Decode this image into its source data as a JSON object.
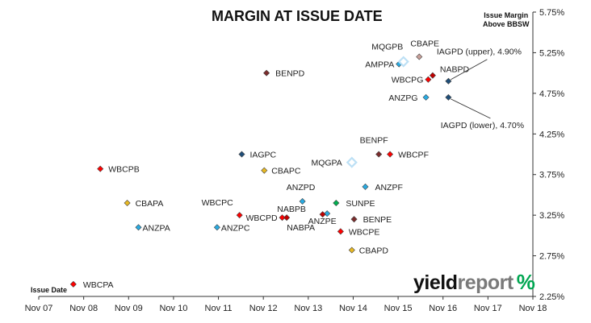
{
  "chart_data": {
    "type": "scatter",
    "title": "MARGIN AT ISSUE DATE",
    "ylabel": [
      "Issue Margin",
      "Above BBSW"
    ],
    "xlabel": "Issue Date",
    "x_ticks": [
      "Nov 07",
      "Nov 08",
      "Nov 09",
      "Nov 10",
      "Nov 11",
      "Nov 12",
      "Nov 13",
      "Nov 14",
      "Nov 15",
      "Nov 16",
      "Nov 17",
      "Nov 18"
    ],
    "y_ticks": [
      "2.25%",
      "2.75%",
      "3.25%",
      "3.75%",
      "4.25%",
      "4.75%",
      "5.25%",
      "5.75%"
    ],
    "xlim": [
      2007.83,
      2018.83
    ],
    "ylim": [
      2.25,
      5.75
    ],
    "grid": false,
    "points": [
      {
        "label": "WBCPA",
        "x": 2008.6,
        "y": 2.4,
        "color": "#ff0000",
        "marker": "diamond"
      },
      {
        "label": "WBCPB",
        "x": 2009.2,
        "y": 3.82,
        "color": "#ff0000",
        "marker": "diamond"
      },
      {
        "label": "CBAPA",
        "x": 2009.8,
        "y": 3.4,
        "color": "#e8b923",
        "marker": "diamond"
      },
      {
        "label": "ANZPA",
        "x": 2010.05,
        "y": 3.1,
        "color": "#29abe2",
        "marker": "diamond"
      },
      {
        "label": "WBCPC",
        "x": 2012.3,
        "y": 3.25,
        "color": "#ff0000",
        "marker": "diamond"
      },
      {
        "label": "ANZPC",
        "x": 2011.8,
        "y": 3.1,
        "color": "#29abe2",
        "marker": "diamond"
      },
      {
        "label": "IAGPC",
        "x": 2012.35,
        "y": 4.0,
        "color": "#1f4e79",
        "marker": "diamond"
      },
      {
        "label": "CBAPC",
        "x": 2012.85,
        "y": 3.8,
        "color": "#e8b923",
        "marker": "diamond"
      },
      {
        "label": "BENPD",
        "x": 2012.9,
        "y": 5.0,
        "color": "#7b2c2c",
        "marker": "diamond"
      },
      {
        "label": "WBCPD",
        "x": 2013.25,
        "y": 3.22,
        "color": "#ff0000",
        "marker": "diamond"
      },
      {
        "label": "NABPB",
        "x": 2013.35,
        "y": 3.22,
        "color": "#c00000",
        "marker": "diamond"
      },
      {
        "label": "ANZPD",
        "x": 2013.7,
        "y": 3.42,
        "color": "#29abe2",
        "marker": "diamond"
      },
      {
        "label": "ANZPE",
        "x": 2014.25,
        "y": 3.27,
        "color": "#29abe2",
        "marker": "diamond"
      },
      {
        "label": "NABPA",
        "x": 2014.15,
        "y": 3.26,
        "color": "#c00000",
        "marker": "diamond"
      },
      {
        "label": "SUNPE",
        "x": 2014.45,
        "y": 3.4,
        "color": "#00b050",
        "marker": "diamond"
      },
      {
        "label": "WBCPE",
        "x": 2014.55,
        "y": 3.05,
        "color": "#ff0000",
        "marker": "diamond"
      },
      {
        "label": "CBAPD",
        "x": 2014.8,
        "y": 2.82,
        "color": "#e8b923",
        "marker": "diamond"
      },
      {
        "label": "BENPE",
        "x": 2014.85,
        "y": 3.2,
        "color": "#7b2c2c",
        "marker": "diamond"
      },
      {
        "label": "MQGPA",
        "x": 2014.8,
        "y": 3.9,
        "color": "#bde0f5",
        "marker": "diamond-open"
      },
      {
        "label": "ANZPF",
        "x": 2015.1,
        "y": 3.6,
        "color": "#29abe2",
        "marker": "diamond"
      },
      {
        "label": "BENPF",
        "x": 2015.4,
        "y": 4.0,
        "color": "#7b2c2c",
        "marker": "diamond"
      },
      {
        "label": "WBCPF",
        "x": 2015.65,
        "y": 4.0,
        "color": "#ff0000",
        "marker": "diamond"
      },
      {
        "label": "ANZPG",
        "x": 2016.45,
        "y": 4.7,
        "color": "#29abe2",
        "marker": "diamond"
      },
      {
        "label": "AMPPA",
        "x": 2015.85,
        "y": 5.11,
        "color": "#29abe2",
        "marker": "diamond"
      },
      {
        "label": "MQGPB",
        "x": 2015.95,
        "y": 5.14,
        "color": "#bde0f5",
        "marker": "diamond-open"
      },
      {
        "label": "CBAPE",
        "x": 2016.3,
        "y": 5.2,
        "color": "#c9a09a",
        "marker": "diamond"
      },
      {
        "label": "WBCPG",
        "x": 2016.5,
        "y": 4.92,
        "color": "#ff0000",
        "marker": "diamond"
      },
      {
        "label": "NABPD",
        "x": 2016.6,
        "y": 4.97,
        "color": "#c00000",
        "marker": "diamond"
      },
      {
        "label": "IAGPD (upper), 4.90%",
        "x": 2016.95,
        "y": 4.9,
        "color": "#1f4e79",
        "marker": "diamond"
      },
      {
        "label": "IAGPD (lower), 4.70%",
        "x": 2016.95,
        "y": 4.7,
        "color": "#1f4e79",
        "marker": "diamond"
      }
    ]
  },
  "branding": {
    "logo_part1": "yield",
    "logo_part2": "report",
    "logo_symbol": "%"
  }
}
